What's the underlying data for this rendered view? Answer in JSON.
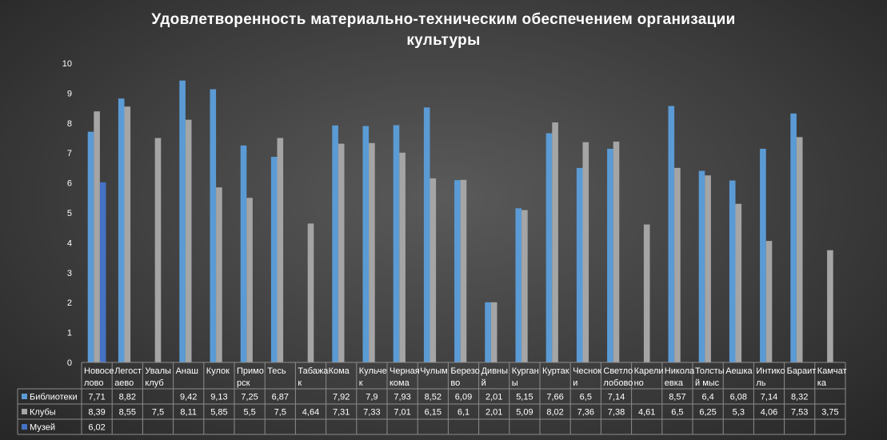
{
  "chart_data": {
    "type": "bar",
    "title_lines": [
      "Удовлетворенность материально-техническим обеспечением организации",
      "культуры"
    ],
    "ylim": [
      0,
      10
    ],
    "yticks": [
      0,
      1,
      2,
      3,
      4,
      5,
      6,
      7,
      8,
      9,
      10
    ],
    "legend_placement": "table-bottom",
    "grid": false,
    "categories": [
      [
        "Новосе",
        "лово"
      ],
      [
        "Легост",
        "аево"
      ],
      [
        "Увалы",
        "клуб"
      ],
      [
        "Анаш"
      ],
      [
        "Кулок"
      ],
      [
        "Примо",
        "рск"
      ],
      [
        "Тесь"
      ],
      [
        "Табажа",
        "к"
      ],
      [
        "Кома"
      ],
      [
        "Кульче",
        "к"
      ],
      [
        "Черная",
        "кома"
      ],
      [
        "Чулым"
      ],
      [
        "Березо",
        "во"
      ],
      [
        "Дивны",
        "й"
      ],
      [
        "Курган",
        "ы"
      ],
      [
        "Куртак"
      ],
      [
        "Чеснок",
        "и"
      ],
      [
        "Светло",
        "лобово"
      ],
      [
        "Карели",
        "но"
      ],
      [
        "Никола",
        "евка"
      ],
      [
        "Толсты",
        "й мыс"
      ],
      [
        "Аешка"
      ],
      [
        "Интико",
        "ль"
      ],
      [
        "Бараит"
      ],
      [
        "Камчат",
        "ка"
      ]
    ],
    "series": [
      {
        "name": "Библиотеки",
        "color": "#5b9bd5",
        "values": [
          7.71,
          8.82,
          null,
          9.42,
          9.13,
          7.25,
          6.87,
          null,
          7.92,
          7.9,
          7.93,
          8.52,
          6.09,
          2.01,
          5.15,
          7.66,
          6.5,
          7.14,
          null,
          8.57,
          6.4,
          6.08,
          7.14,
          8.32,
          null
        ],
        "labels": [
          "7,71",
          "8,82",
          "",
          "9,42",
          "9,13",
          "7,25",
          "6,87",
          "",
          "7,92",
          "7,9",
          "7,93",
          "8,52",
          "6,09",
          "2,01",
          "5,15",
          "7,66",
          "6,5",
          "7,14",
          "",
          "8,57",
          "6,4",
          "6,08",
          "7,14",
          "8,32",
          ""
        ]
      },
      {
        "name": "Клубы",
        "color": "#a5a5a5",
        "values": [
          8.39,
          8.55,
          7.5,
          8.11,
          5.85,
          5.5,
          7.5,
          4.64,
          7.31,
          7.33,
          7.01,
          6.15,
          6.1,
          2.01,
          5.09,
          8.02,
          7.36,
          7.38,
          4.61,
          6.5,
          6.25,
          5.3,
          4.06,
          7.53,
          3.75
        ],
        "labels": [
          "8,39",
          "8,55",
          "7,5",
          "8,11",
          "5,85",
          "5,5",
          "7,5",
          "4,64",
          "7,31",
          "7,33",
          "7,01",
          "6,15",
          "6,1",
          "2,01",
          "5,09",
          "8,02",
          "7,36",
          "7,38",
          "4,61",
          "6,5",
          "6,25",
          "5,3",
          "4,06",
          "7,53",
          "3,75"
        ]
      },
      {
        "name": "Музей",
        "color": "#4472c4",
        "values": [
          6.02,
          null,
          null,
          null,
          null,
          null,
          null,
          null,
          null,
          null,
          null,
          null,
          null,
          null,
          null,
          null,
          null,
          null,
          null,
          null,
          null,
          null,
          null,
          null,
          null
        ],
        "labels": [
          "6,02",
          "",
          "",
          "",
          "",
          "",
          "",
          "",
          "",
          "",
          "",
          "",
          "",
          "",
          "",
          "",
          "",
          "",
          "",
          "",
          "",
          "",
          "",
          "",
          ""
        ]
      }
    ]
  }
}
